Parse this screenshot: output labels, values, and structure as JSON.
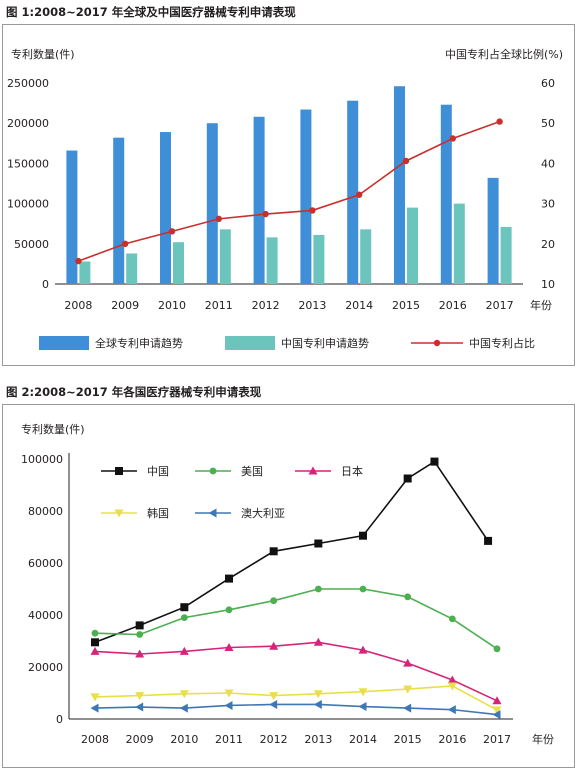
{
  "figure1": {
    "title": "图 1:2008~2017 年全球及中国医疗器械专利申请表现",
    "left_axis_label": "专利数量(件)",
    "right_axis_label": "中国专利占全球比例(%)",
    "x_unit": "年份",
    "legend": [
      "全球专利申请趋势",
      "中国专利申请趋势",
      "中国专利占比"
    ]
  },
  "figure2": {
    "title": "图 2:2008~2017 年各国医疗器械专利申请表现",
    "y_axis_label": "专利数量(件)",
    "x_unit": "年份"
  },
  "chart_data": [
    {
      "type": "bar",
      "categories": [
        "2008",
        "2009",
        "2010",
        "2011",
        "2012",
        "2013",
        "2014",
        "2015",
        "2016",
        "2017"
      ],
      "yticks_left": [
        "0",
        "50000",
        "100000",
        "150000",
        "200000",
        "250000"
      ],
      "yticks_right": [
        "10",
        "20",
        "30",
        "40",
        "50",
        "60"
      ],
      "ylim_left": [
        0,
        250000
      ],
      "ylim_right": [
        10,
        60
      ],
      "colors": {
        "global": "#3f8fd8",
        "china": "#6cc5bd",
        "ratio": "#c9302c"
      },
      "series": [
        {
          "name": "全球专利申请趋势",
          "axis": "left",
          "values": [
            166000,
            182000,
            189000,
            200000,
            208000,
            217000,
            228000,
            246000,
            223000,
            132000
          ]
        },
        {
          "name": "中国专利申请趋势",
          "axis": "left",
          "values": [
            28000,
            38000,
            52000,
            68000,
            58000,
            61000,
            68000,
            95000,
            100000,
            71000
          ]
        },
        {
          "name": "中国专利占比",
          "type": "line",
          "axis": "right",
          "values": [
            15.7,
            20.0,
            23.1,
            26.2,
            27.4,
            28.3,
            32.2,
            40.6,
            46.2,
            50.4
          ]
        }
      ]
    },
    {
      "type": "line",
      "x": [
        "2008",
        "2009",
        "2010",
        "2011",
        "2012",
        "2013",
        "2014",
        "2015",
        "2016",
        "2017"
      ],
      "yticks": [
        "0",
        "20000",
        "40000",
        "60000",
        "80000",
        "100000"
      ],
      "ylim": [
        0,
        100000
      ],
      "series": [
        {
          "name": "中国",
          "color": "#111111",
          "marker": "square",
          "points": [
            [
              2008,
              29500
            ],
            [
              2009,
              36000
            ],
            [
              2010,
              43000
            ],
            [
              2011,
              54000
            ],
            [
              2012,
              64500
            ],
            [
              2013,
              67500
            ],
            [
              2014,
              70500
            ],
            [
              2015,
              92500
            ],
            [
              2015.6,
              99000
            ],
            [
              2016.8,
              68500
            ]
          ]
        },
        {
          "name": "美国",
          "color": "#4caf50",
          "marker": "circle",
          "points": [
            [
              2008,
              33000
            ],
            [
              2009,
              32500
            ],
            [
              2010,
              39000
            ],
            [
              2011,
              42000
            ],
            [
              2012,
              45500
            ],
            [
              2013,
              50000
            ],
            [
              2014,
              50000
            ],
            [
              2015,
              47000
            ],
            [
              2016,
              38500
            ],
            [
              2017,
              27000
            ]
          ]
        },
        {
          "name": "日本",
          "color": "#d6247a",
          "marker": "triangle-up",
          "points": [
            [
              2008,
              26000
            ],
            [
              2009,
              25000
            ],
            [
              2010,
              26000
            ],
            [
              2011,
              27500
            ],
            [
              2012,
              28000
            ],
            [
              2013,
              29500
            ],
            [
              2014,
              26500
            ],
            [
              2015,
              21500
            ],
            [
              2016,
              15000
            ],
            [
              2017,
              7000
            ]
          ]
        },
        {
          "name": "韩国",
          "color": "#e8e04a",
          "marker": "triangle-down",
          "points": [
            [
              2008,
              8500
            ],
            [
              2009,
              9000
            ],
            [
              2010,
              9700
            ],
            [
              2011,
              10000
            ],
            [
              2012,
              9000
            ],
            [
              2013,
              9700
            ],
            [
              2014,
              10500
            ],
            [
              2015,
              11500
            ],
            [
              2016,
              12700
            ],
            [
              2017,
              3500
            ]
          ]
        },
        {
          "name": "澳大利亚",
          "color": "#3e77b6",
          "marker": "triangle-left",
          "points": [
            [
              2008,
              4200
            ],
            [
              2009,
              4600
            ],
            [
              2010,
              4200
            ],
            [
              2011,
              5200
            ],
            [
              2012,
              5600
            ],
            [
              2013,
              5600
            ],
            [
              2014,
              4800
            ],
            [
              2015,
              4200
            ],
            [
              2016,
              3600
            ],
            [
              2017,
              1700
            ]
          ]
        }
      ]
    }
  ]
}
